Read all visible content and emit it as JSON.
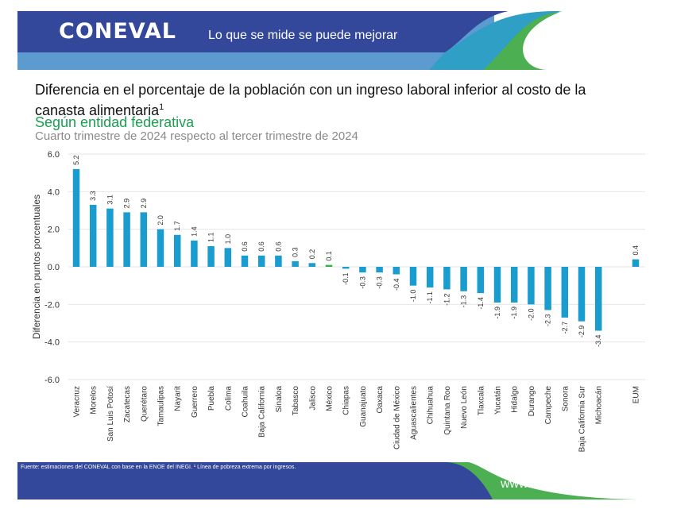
{
  "header": {
    "logo": "CONEVAL",
    "tagline": "Lo que se mide se puede mejorar"
  },
  "chart_data": {
    "type": "bar",
    "title": "Diferencia en el porcentaje de la población con un ingreso laboral inferior al costo de la canasta alimentaria",
    "title_sup": "1",
    "subtitle": "Según entidad federativa",
    "subtitle2": "Cuarto trimestre de 2024 respecto al tercer trimestre de 2024",
    "xlabel": "",
    "ylabel": "Diferencia en puntos porcentuales",
    "ylim": [
      -6,
      6
    ],
    "yticks": [
      "6.0",
      "4.0",
      "2.0",
      "0.0",
      "-2.0",
      "-4.0",
      "-6.0"
    ],
    "grid": true,
    "categories": [
      "Veracruz",
      "Morelos",
      "San Luis Potosí",
      "Zacatecas",
      "Querétaro",
      "Tamaulipas",
      "Nayarit",
      "Guerrero",
      "Puebla",
      "Colima",
      "Coahuila",
      "Baja California",
      "Sinaloa",
      "Tabasco",
      "Jalisco",
      "México",
      "Chiapas",
      "Guanajuato",
      "Oaxaca",
      "Ciudad de México",
      "Aguascalientes",
      "Chihuahua",
      "Quintana Roo",
      "Nuevo León",
      "Tlaxcala",
      "Yucatán",
      "Hidalgo",
      "Durango",
      "Campeche",
      "Sonora",
      "Baja California Sur",
      "Michoacán",
      "EUM"
    ],
    "values": [
      5.2,
      3.3,
      3.1,
      2.9,
      2.9,
      2.0,
      1.7,
      1.4,
      1.1,
      1.0,
      0.6,
      0.6,
      0.6,
      0.3,
      0.2,
      0.1,
      -0.1,
      -0.3,
      -0.3,
      -0.4,
      -1.0,
      -1.1,
      -1.2,
      -1.3,
      -1.4,
      -1.9,
      -1.9,
      -2.0,
      -2.3,
      -2.7,
      -2.9,
      -3.4,
      0.4
    ],
    "labels": [
      "5.2",
      "3.3",
      "3.1",
      "2.9",
      "2.9",
      "2.0",
      "1.7",
      "1.4",
      "1.1",
      "1.0",
      "0.6",
      "0.6",
      "0.6",
      "0.3",
      "0.2",
      "0.1",
      "-0.1",
      "-0.3",
      "-0.3",
      "-0.4",
      "-1.0",
      "-1.1",
      "-1.2",
      "-1.3",
      "-1.4",
      "-1.9",
      "-1.9",
      "-2.0",
      "-2.3",
      "-2.7",
      "-2.9",
      "-3.4",
      "0.4"
    ],
    "colors": {
      "bar": "#1a9ccf",
      "mexico_bar": "#2eb04f"
    }
  },
  "footer": {
    "source": "Fuente: estimaciones del CONEVAL con base en la ENOE del INEGI. ¹ Línea de pobreza extrema por ingresos.",
    "url": "www.coneval.org.mx"
  }
}
